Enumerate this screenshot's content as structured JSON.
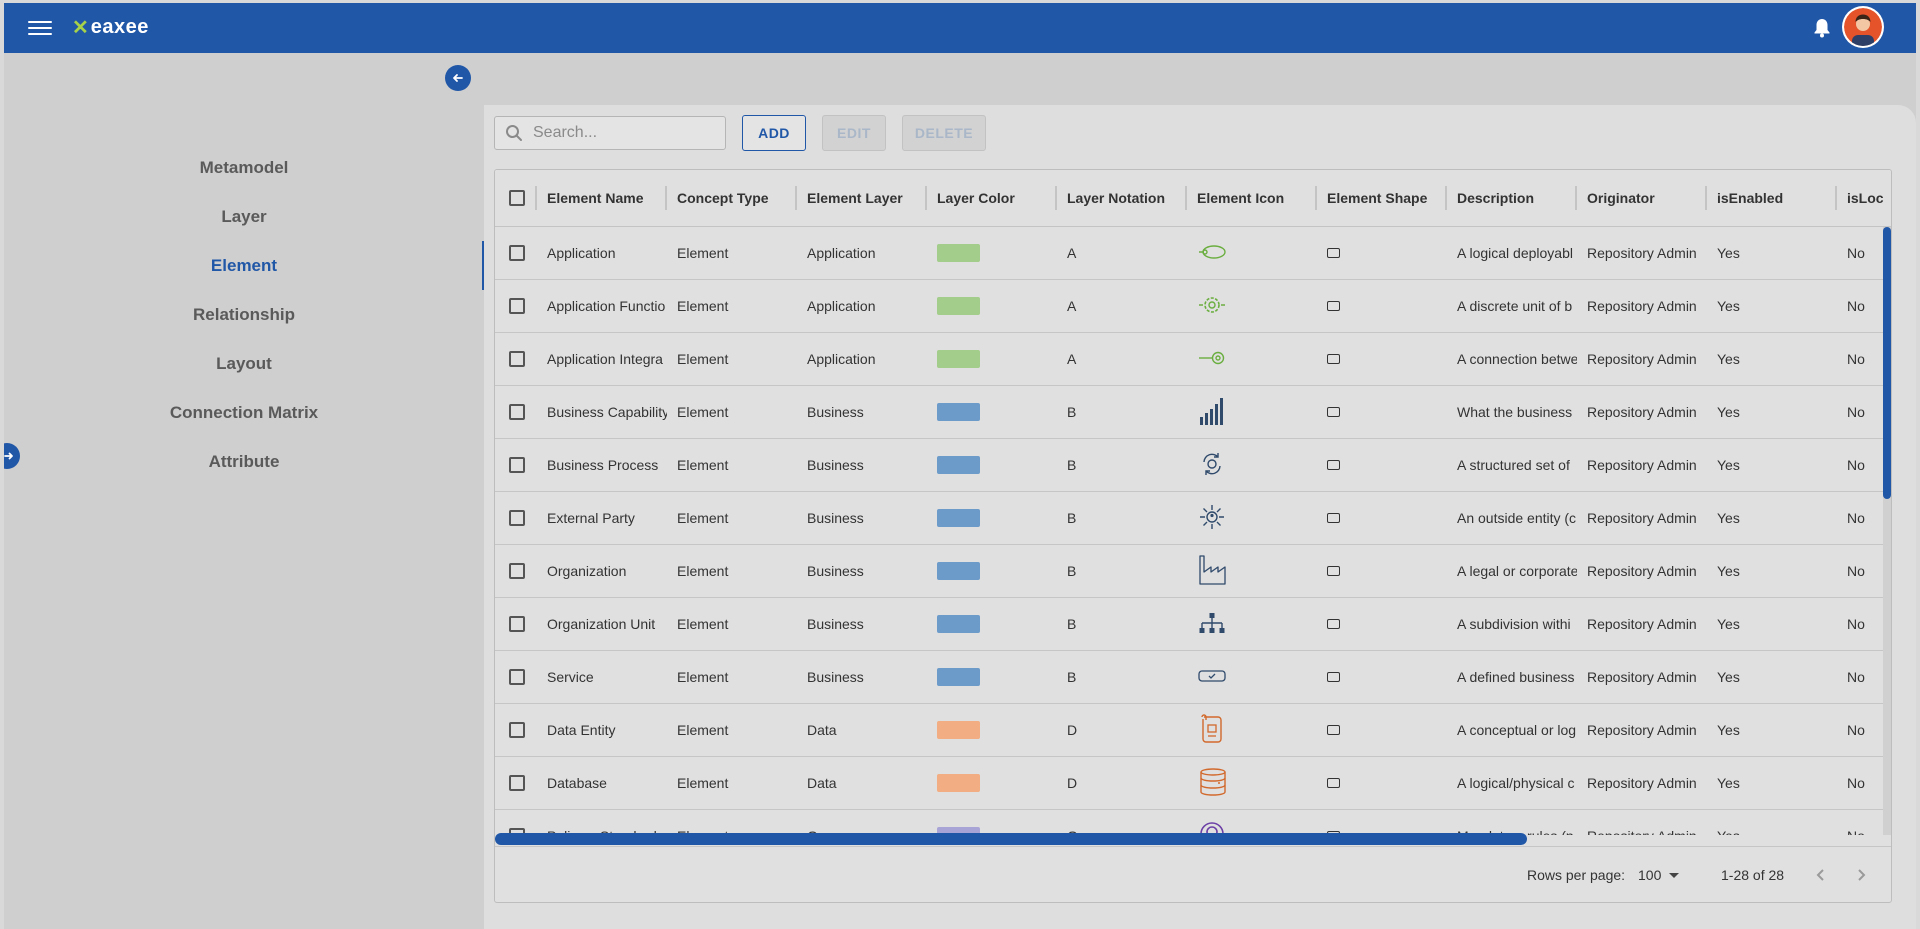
{
  "app": {
    "logo_mark": "✕",
    "logo_text": "eaxee"
  },
  "sidebar": {
    "items": [
      {
        "label": "Metamodel",
        "active": false
      },
      {
        "label": "Layer",
        "active": false
      },
      {
        "label": "Element",
        "active": true
      },
      {
        "label": "Relationship",
        "active": false
      },
      {
        "label": "Layout",
        "active": false
      },
      {
        "label": "Connection Matrix",
        "active": false
      },
      {
        "label": "Attribute",
        "active": false
      }
    ]
  },
  "toolbar": {
    "search_placeholder": "Search...",
    "add_label": "ADD",
    "edit_label": "EDIT",
    "delete_label": "DELETE"
  },
  "table": {
    "columns": [
      "Element Name",
      "Concept Type",
      "Element Layer",
      "Layer Color",
      "Layer Notation",
      "Element Icon",
      "Element Shape",
      "Description",
      "Originator",
      "isEnabled",
      "isLoc"
    ],
    "rows": [
      {
        "name": "Application",
        "concept": "Element",
        "layer": "Application",
        "color": "#a3cd8a",
        "notation": "A",
        "icon": "app-icon",
        "icon_color": "#6aae3f",
        "description": "A logical deployabl",
        "originator": "Repository Admin",
        "enabled": "Yes",
        "locked": "No"
      },
      {
        "name": "Application Functio",
        "concept": "Element",
        "layer": "Application",
        "color": "#a3cd8a",
        "notation": "A",
        "icon": "gear-icon",
        "icon_color": "#6aae3f",
        "description": "A discrete unit of b",
        "originator": "Repository Admin",
        "enabled": "Yes",
        "locked": "No"
      },
      {
        "name": "Application Integra",
        "concept": "Element",
        "layer": "Application",
        "color": "#a3cd8a",
        "notation": "A",
        "icon": "interface-icon",
        "icon_color": "#6aae3f",
        "description": "A connection betwe",
        "originator": "Repository Admin",
        "enabled": "Yes",
        "locked": "No"
      },
      {
        "name": "Business Capability",
        "concept": "Element",
        "layer": "Business",
        "color": "#6c9bc9",
        "notation": "B",
        "icon": "bar-chart-icon",
        "icon_color": "#2f4a6b",
        "description": "What the business",
        "originator": "Repository Admin",
        "enabled": "Yes",
        "locked": "No"
      },
      {
        "name": "Business Process",
        "concept": "Element",
        "layer": "Business",
        "color": "#6c9bc9",
        "notation": "B",
        "icon": "process-cycle-icon",
        "icon_color": "#2f4a6b",
        "description": "A structured set of",
        "originator": "Repository Admin",
        "enabled": "Yes",
        "locked": "No"
      },
      {
        "name": "External Party",
        "concept": "Element",
        "layer": "Business",
        "color": "#6c9bc9",
        "notation": "B",
        "icon": "network-person-icon",
        "icon_color": "#2f4a6b",
        "description": "An outside entity (c",
        "originator": "Repository Admin",
        "enabled": "Yes",
        "locked": "No"
      },
      {
        "name": "Organization",
        "concept": "Element",
        "layer": "Business",
        "color": "#6c9bc9",
        "notation": "B",
        "icon": "factory-icon",
        "icon_color": "#2f4a6b",
        "description": "A legal or corporate",
        "originator": "Repository Admin",
        "enabled": "Yes",
        "locked": "No"
      },
      {
        "name": "Organization Unit",
        "concept": "Element",
        "layer": "Business",
        "color": "#6c9bc9",
        "notation": "B",
        "icon": "org-chart-icon",
        "icon_color": "#2f4a6b",
        "description": "A subdivision withi",
        "originator": "Repository Admin",
        "enabled": "Yes",
        "locked": "No"
      },
      {
        "name": "Service",
        "concept": "Element",
        "layer": "Business",
        "color": "#6c9bc9",
        "notation": "B",
        "icon": "service-icon",
        "icon_color": "#2f4a6b",
        "description": "A defined business",
        "originator": "Repository Admin",
        "enabled": "Yes",
        "locked": "No"
      },
      {
        "name": "Data Entity",
        "concept": "Element",
        "layer": "Data",
        "color": "#f2ad82",
        "notation": "D",
        "icon": "document-icon",
        "icon_color": "#d2692c",
        "description": "A conceptual or log",
        "originator": "Repository Admin",
        "enabled": "Yes",
        "locked": "No"
      },
      {
        "name": "Database",
        "concept": "Element",
        "layer": "Data",
        "color": "#f2ad82",
        "notation": "D",
        "icon": "database-icon",
        "icon_color": "#d2692c",
        "description": "A logical/physical c",
        "originator": "Repository Admin",
        "enabled": "Yes",
        "locked": "No"
      },
      {
        "name": "Policy n Standard",
        "concept": "Element",
        "layer": "Governance",
        "color": "#a9a4d6",
        "notation": "G",
        "icon": "badge-icon",
        "icon_color": "#6c3fa6",
        "description": "Mandatory rules (p",
        "originator": "Repository Admin",
        "enabled": "Yes",
        "locked": "No"
      }
    ]
  },
  "pagination": {
    "rows_per_page_label": "Rows per page:",
    "rows_per_page_value": "100",
    "range": "1-28 of 28"
  }
}
